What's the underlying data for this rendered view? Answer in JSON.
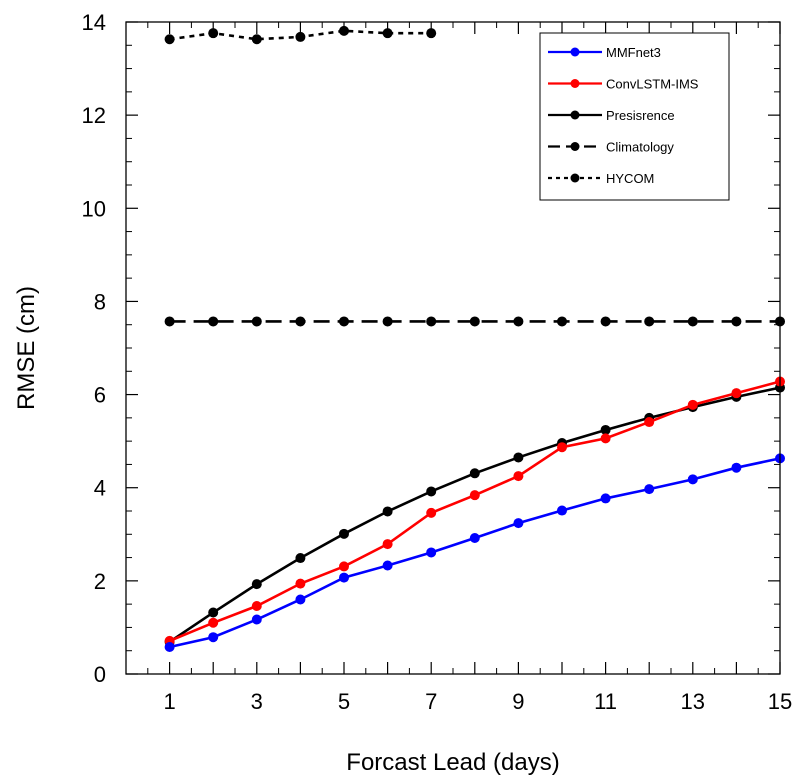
{
  "chart_data": {
    "type": "line",
    "xlabel": "Forcast Lead (days)",
    "ylabel": "RMSE (cm)",
    "xlim": [
      0,
      15
    ],
    "ylim": [
      0,
      14
    ],
    "xticks": [
      1,
      3,
      5,
      7,
      9,
      11,
      13,
      15
    ],
    "yticks": [
      0,
      2,
      4,
      6,
      8,
      10,
      12,
      14
    ],
    "legend_position": "top-right",
    "grid": false,
    "series": [
      {
        "name": "MMFnet3",
        "color": "#0000ff",
        "dash": "solid",
        "x": [
          1,
          2,
          3,
          4,
          5,
          6,
          7,
          8,
          9,
          10,
          11,
          12,
          13,
          14,
          15
        ],
        "values": [
          0.58,
          0.79,
          1.17,
          1.6,
          2.07,
          2.33,
          2.61,
          2.92,
          3.24,
          3.51,
          3.77,
          3.97,
          4.18,
          4.43,
          4.63
        ]
      },
      {
        "name": "ConvLSTM-IMS",
        "color": "#ff0000",
        "dash": "solid",
        "x": [
          1,
          2,
          3,
          4,
          5,
          6,
          7,
          8,
          9,
          10,
          11,
          12,
          13,
          14,
          15
        ],
        "values": [
          0.71,
          1.1,
          1.46,
          1.94,
          2.31,
          2.79,
          3.46,
          3.84,
          4.25,
          4.87,
          5.06,
          5.41,
          5.78,
          6.03,
          6.28
        ]
      },
      {
        "name": "Presisrence",
        "color": "#000000",
        "dash": "solid",
        "x": [
          1,
          2,
          3,
          4,
          5,
          6,
          7,
          8,
          9,
          10,
          11,
          12,
          13,
          14,
          15
        ],
        "values": [
          0.69,
          1.32,
          1.93,
          2.49,
          3.01,
          3.49,
          3.92,
          4.31,
          4.65,
          4.96,
          5.24,
          5.5,
          5.73,
          5.95,
          6.15
        ]
      },
      {
        "name": "Climatology",
        "color": "#000000",
        "dash": "long",
        "x": [
          1,
          2,
          3,
          4,
          5,
          6,
          7,
          8,
          9,
          10,
          11,
          12,
          13,
          14,
          15
        ],
        "values": [
          7.57,
          7.57,
          7.57,
          7.57,
          7.57,
          7.57,
          7.57,
          7.57,
          7.57,
          7.57,
          7.57,
          7.57,
          7.57,
          7.57,
          7.57
        ]
      },
      {
        "name": "HYCOM",
        "color": "#000000",
        "dash": "short",
        "x": [
          1,
          2,
          3,
          4,
          5,
          6,
          7
        ],
        "values": [
          13.63,
          13.76,
          13.63,
          13.68,
          13.81,
          13.76,
          13.76
        ]
      }
    ]
  }
}
